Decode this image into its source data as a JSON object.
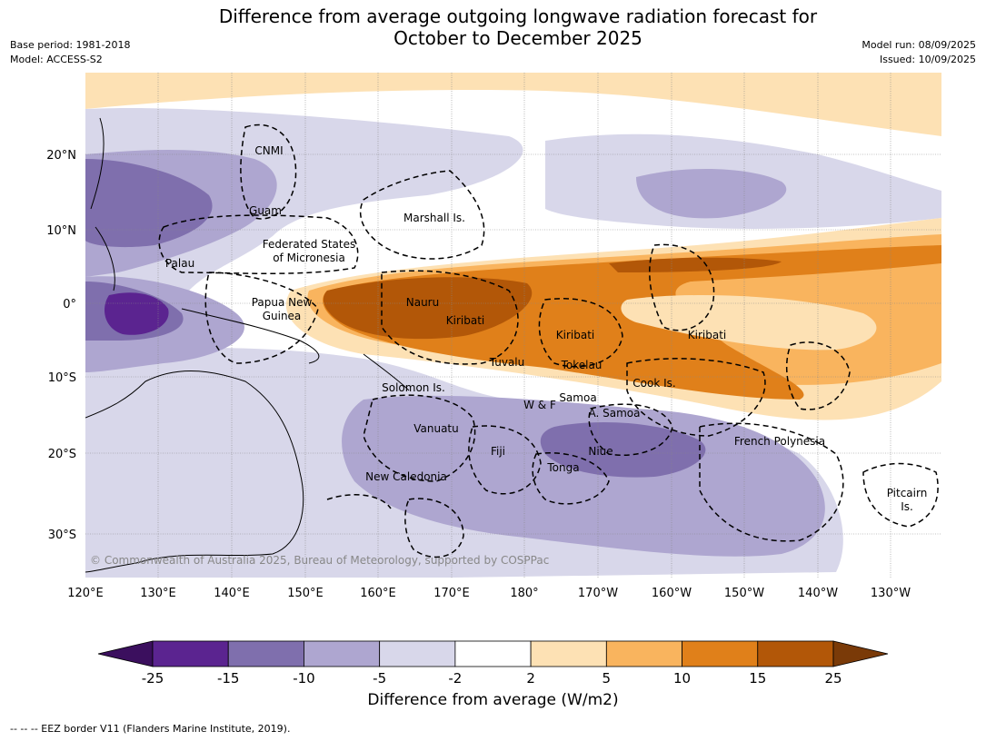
{
  "title_line1": "Difference from average outgoing longwave radiation forecast for",
  "title_line2": "October to December 2025",
  "base_period": "Base period: 1981-2018",
  "model": "Model: ACCESS-S2",
  "model_run": "Model run: 08/09/2025",
  "issued": "Issued: 10/09/2025",
  "copyright": "© Commonwealth of Australia 2025, Bureau of Meteorology, supported by COSPPac",
  "lon_labels": [
    "120°E",
    "130°E",
    "140°E",
    "150°E",
    "160°E",
    "170°E",
    "180°",
    "170°W",
    "160°W",
    "150°W",
    "140°W",
    "130°W"
  ],
  "lat_labels": [
    "20°N",
    "10°N",
    "0°",
    "10°S",
    "20°S",
    "30°S"
  ],
  "regions": [
    "CNMI",
    "Guam",
    "Marshall Is.",
    "Federated States",
    "of Micronesia",
    "Palau",
    "Papua New",
    "Guinea",
    "Nauru",
    "Kiribati",
    "Kiribati",
    "Kiribati",
    "Tuvalu",
    "Tokelau",
    "Cook Is.",
    "Solomon Is.",
    "Samoa",
    "W & F",
    "A. Samoa",
    "Vanuatu",
    "Fiji",
    "Niue",
    "Tonga",
    "New Caledonia",
    "French Polynesia",
    "Pitcairn",
    "Is."
  ],
  "colorbar": {
    "labels": [
      "-25",
      "-15",
      "-10",
      "-5",
      "-2",
      "2",
      "5",
      "10",
      "15",
      "25"
    ],
    "colors": [
      "#3b0f5e",
      "#5b2490",
      "#7f6fad",
      "#aea6d0",
      "#d8d7ea",
      "#ffffff",
      "#fde1b4",
      "#f9b45e",
      "#e0801a",
      "#b25708",
      "#7a3a08"
    ],
    "title": "Difference from average (W/m2)"
  },
  "footnote": "--  --  -- EEZ border V11 (Flanders Marine Institute, 2019)."
}
